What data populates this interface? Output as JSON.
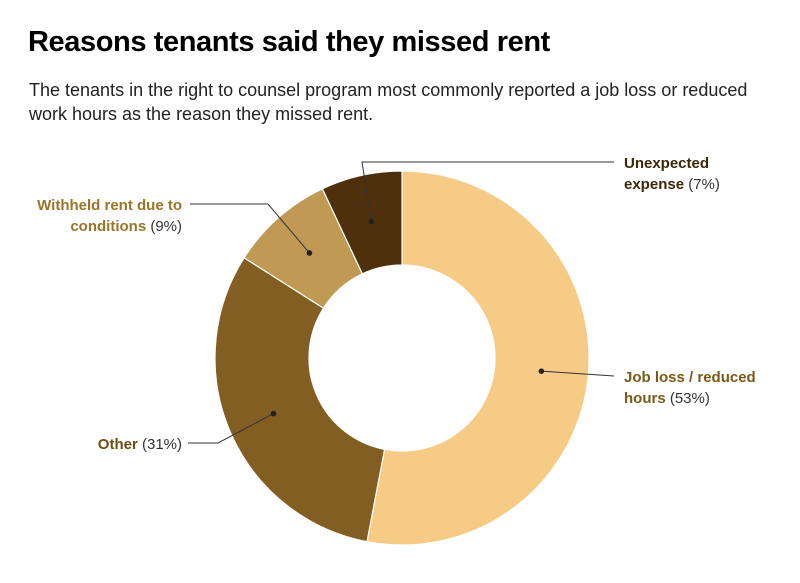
{
  "title": "Reasons tenants said they missed rent",
  "subtitle": "The tenants in the right to counsel program most commonly reported a job loss or reduced work hours as the reason they missed rent.",
  "chart_data": {
    "type": "pie",
    "donut": true,
    "title": "Reasons tenants said they missed rent",
    "slices": [
      {
        "label_lines": [
          "Job loss / reduced",
          "hours"
        ],
        "value": 53,
        "pct_text": "(53%)",
        "color": "#F5CB86",
        "label_color": "#7A5A14"
      },
      {
        "label_lines": [
          "Other"
        ],
        "value": 31,
        "pct_text": "(31%)",
        "color": "#825E22",
        "label_color": "#6E4E12"
      },
      {
        "label_lines": [
          "Withheld rent due to",
          "conditions"
        ],
        "value": 9,
        "pct_text": "(9%)",
        "color": "#C09955",
        "label_color": "#9A7428"
      },
      {
        "label_lines": [
          "Unexpected",
          "expense"
        ],
        "value": 7,
        "pct_text": "(7%)",
        "color": "#4E300D",
        "label_color": "#3E2608"
      }
    ]
  }
}
